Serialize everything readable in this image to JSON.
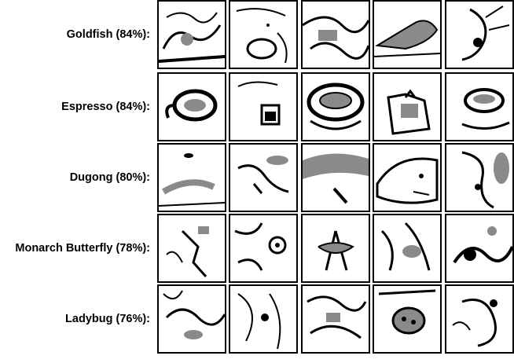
{
  "rows": [
    {
      "label": "Goldfish (84%):",
      "thumbnails": [
        "goldfish-sketch-1",
        "goldfish-sketch-2",
        "goldfish-sketch-3",
        "goldfish-sketch-4",
        "goldfish-sketch-5"
      ]
    },
    {
      "label": "Espresso (84%):",
      "thumbnails": [
        "espresso-cup-sketch-1",
        "espresso-cup-sketch-2",
        "espresso-cup-sketch-3",
        "espresso-cup-sketch-4",
        "espresso-cup-sketch-5"
      ]
    },
    {
      "label": "Dugong (80%):",
      "thumbnails": [
        "dugong-sketch-1",
        "dugong-sketch-2",
        "dugong-sketch-3",
        "dugong-sketch-4",
        "dugong-sketch-5"
      ]
    },
    {
      "label": "Monarch Butterfly (78%):",
      "thumbnails": [
        "butterfly-sketch-1",
        "butterfly-sketch-2",
        "butterfly-sketch-3",
        "butterfly-sketch-4",
        "butterfly-sketch-5"
      ]
    },
    {
      "label": "Ladybug (76%):",
      "thumbnails": [
        "ladybug-sketch-1",
        "ladybug-sketch-2",
        "ladybug-sketch-3",
        "ladybug-sketch-4",
        "ladybug-sketch-5"
      ]
    }
  ],
  "colors": {
    "ink": "#000000",
    "paper": "#ffffff",
    "shade": "#8a8a8a"
  }
}
